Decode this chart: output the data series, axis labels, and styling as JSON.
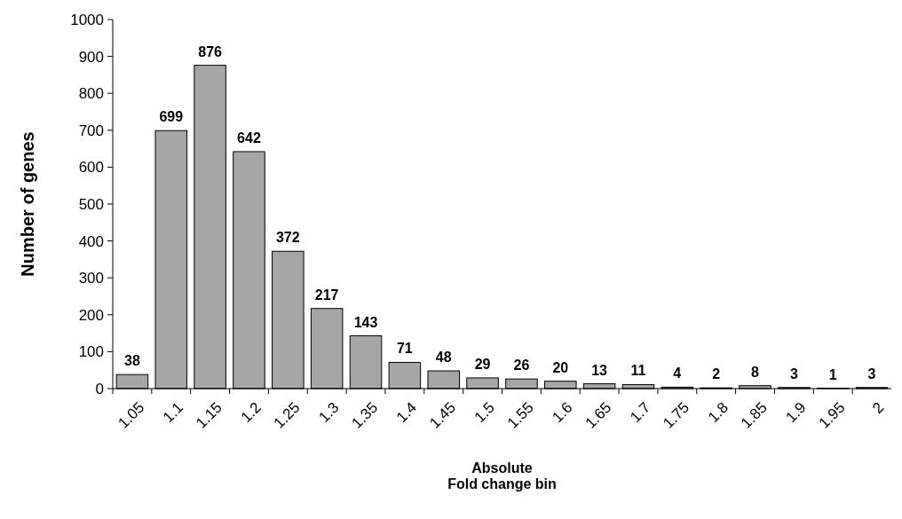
{
  "chart_data": {
    "type": "bar",
    "xlabel": "Absolute\nFold change bin",
    "ylabel": "Number of genes",
    "categories": [
      "1.05",
      "1.1",
      "1.15",
      "1.2",
      "1.25",
      "1.3",
      "1.35",
      "1.4",
      "1.45",
      "1.5",
      "1.55",
      "1.6",
      "1.65",
      "1.7",
      "1.75",
      "1.8",
      "1.85",
      "1.9",
      "1.95",
      "2"
    ],
    "values": [
      38,
      699,
      876,
      642,
      372,
      217,
      143,
      71,
      48,
      29,
      26,
      20,
      13,
      11,
      4,
      2,
      8,
      3,
      1,
      3
    ],
    "color": "#a6a6a6",
    "ylim": [
      0,
      1000
    ],
    "yticks": [
      0,
      100,
      200,
      300,
      400,
      500,
      600,
      700,
      800,
      900,
      1000
    ],
    "data_labels": true,
    "grid": false
  }
}
